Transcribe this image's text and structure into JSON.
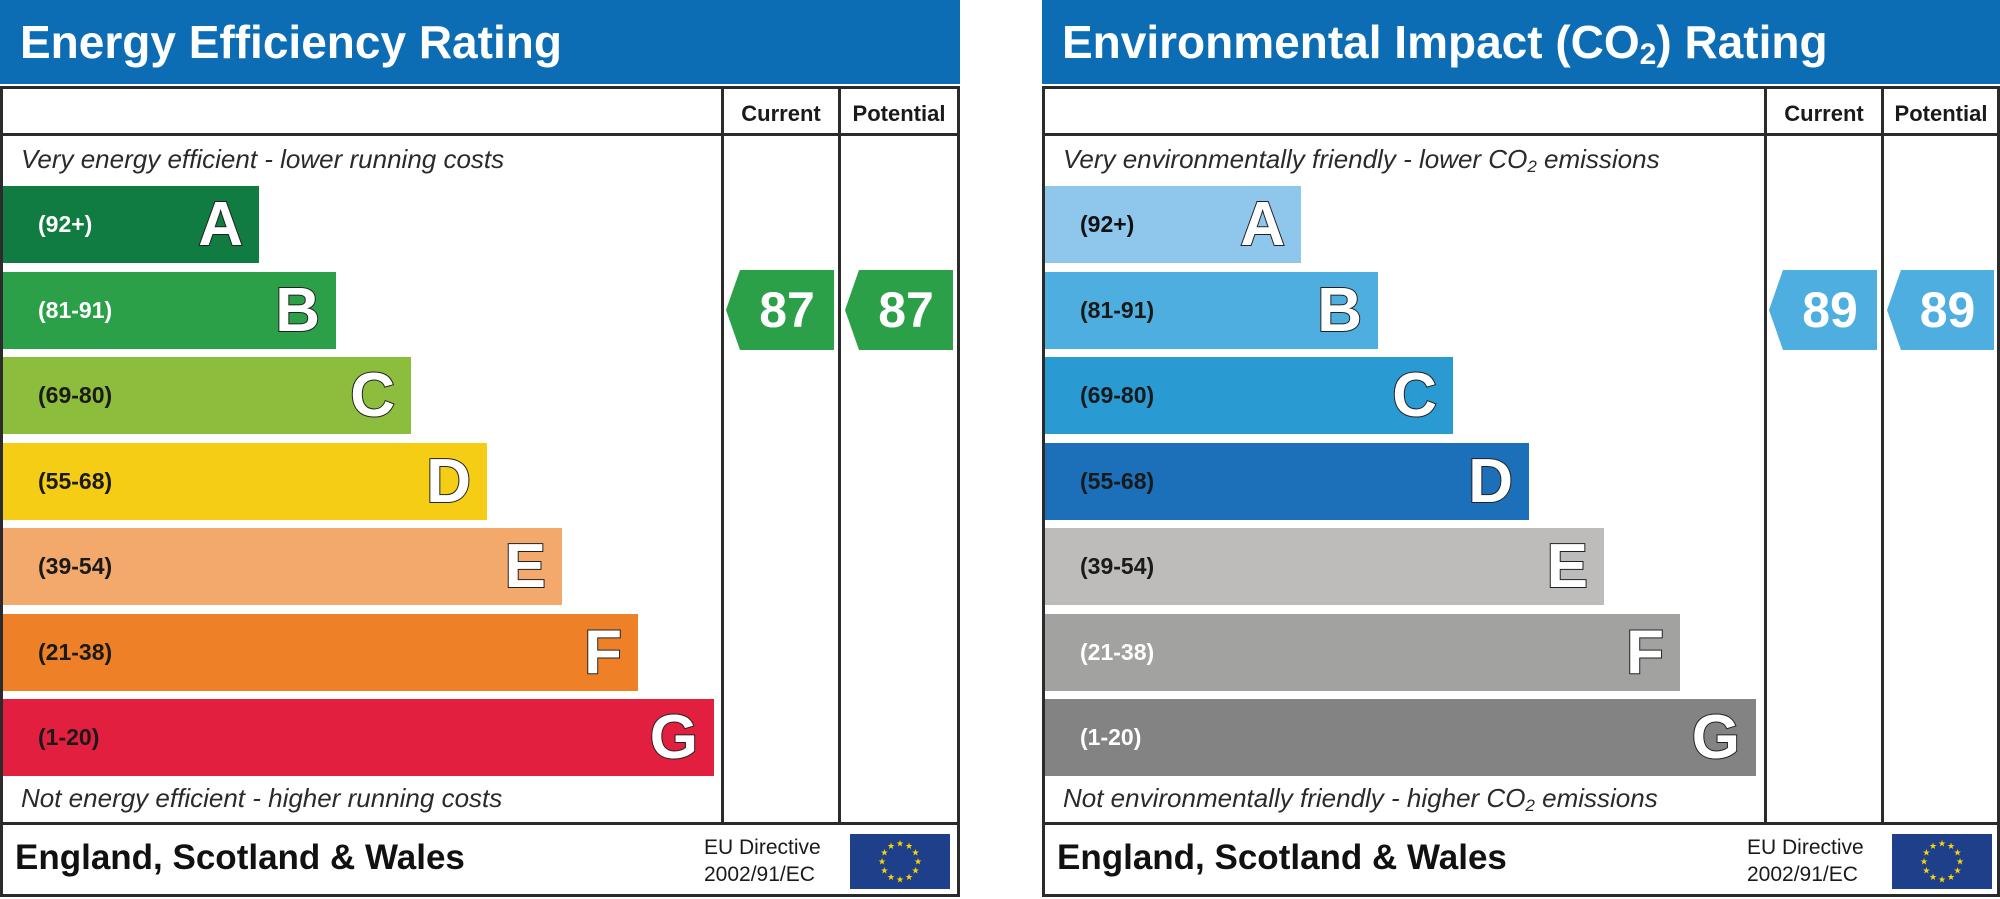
{
  "chart_data": [
    {
      "type": "bar",
      "title": "Energy Efficiency Rating",
      "column_headers": [
        "Current",
        "Potential"
      ],
      "top_caption": "Very energy efficient - lower running costs",
      "bottom_caption": "Not energy efficient - higher running costs",
      "bands": [
        {
          "letter": "A",
          "range": "(92+)",
          "color": "#107c41",
          "text_color": "#ffffff"
        },
        {
          "letter": "B",
          "range": "(81-91)",
          "color": "#2ba049",
          "text_color": "#ffffff"
        },
        {
          "letter": "C",
          "range": "(69-80)",
          "color": "#8dbd3d",
          "text_color": "#1a1a1a"
        },
        {
          "letter": "D",
          "range": "(55-68)",
          "color": "#f6cd15",
          "text_color": "#1a1a1a"
        },
        {
          "letter": "E",
          "range": "(39-54)",
          "color": "#f2a96b",
          "text_color": "#1a1a1a"
        },
        {
          "letter": "F",
          "range": "(21-38)",
          "color": "#ee8127",
          "text_color": "#1a1a1a"
        },
        {
          "letter": "G",
          "range": "(1-20)",
          "color": "#e21f3e",
          "text_color": "#1a1a1a"
        }
      ],
      "current": {
        "value": 87,
        "band": "B",
        "color": "#2ba049"
      },
      "potential": {
        "value": 87,
        "band": "B",
        "color": "#2ba049"
      },
      "region": "England, Scotland & Wales",
      "directive": [
        "EU Directive",
        "2002/91/EC"
      ]
    },
    {
      "type": "bar",
      "title": "Environmental Impact (CO2) Rating",
      "column_headers": [
        "Current",
        "Potential"
      ],
      "top_caption": "Very environmentally friendly - lower CO2 emissions",
      "bottom_caption": "Not environmentally friendly - higher CO2 emissions",
      "bands": [
        {
          "letter": "A",
          "range": "(92+)",
          "color": "#8fc7ec",
          "text_color": "#111111"
        },
        {
          "letter": "B",
          "range": "(81-91)",
          "color": "#4eaedf",
          "text_color": "#1a1a1a"
        },
        {
          "letter": "C",
          "range": "(69-80)",
          "color": "#2a9ad3",
          "text_color": "#1a1a1a"
        },
        {
          "letter": "D",
          "range": "(55-68)",
          "color": "#1b70b9",
          "text_color": "#1a1a1a"
        },
        {
          "letter": "E",
          "range": "(39-54)",
          "color": "#bdbcba",
          "text_color": "#1a1a1a"
        },
        {
          "letter": "F",
          "range": "(21-38)",
          "color": "#a2a2a1",
          "text_color": "#ffffff"
        },
        {
          "letter": "G",
          "range": "(1-20)",
          "color": "#838383",
          "text_color": "#ffffff"
        }
      ],
      "current": {
        "value": 89,
        "band": "B",
        "color": "#4eaedf"
      },
      "potential": {
        "value": 89,
        "band": "B",
        "color": "#4eaedf"
      },
      "region": "England, Scotland & Wales",
      "directive": [
        "EU Directive",
        "2002/91/EC"
      ]
    }
  ],
  "colors": {
    "header_blue": "#0c6db4",
    "eu_blue": "#1e3f8a",
    "eu_star": "#ffd400"
  },
  "icons": {
    "eu_flag": "eu-flag-icon"
  }
}
